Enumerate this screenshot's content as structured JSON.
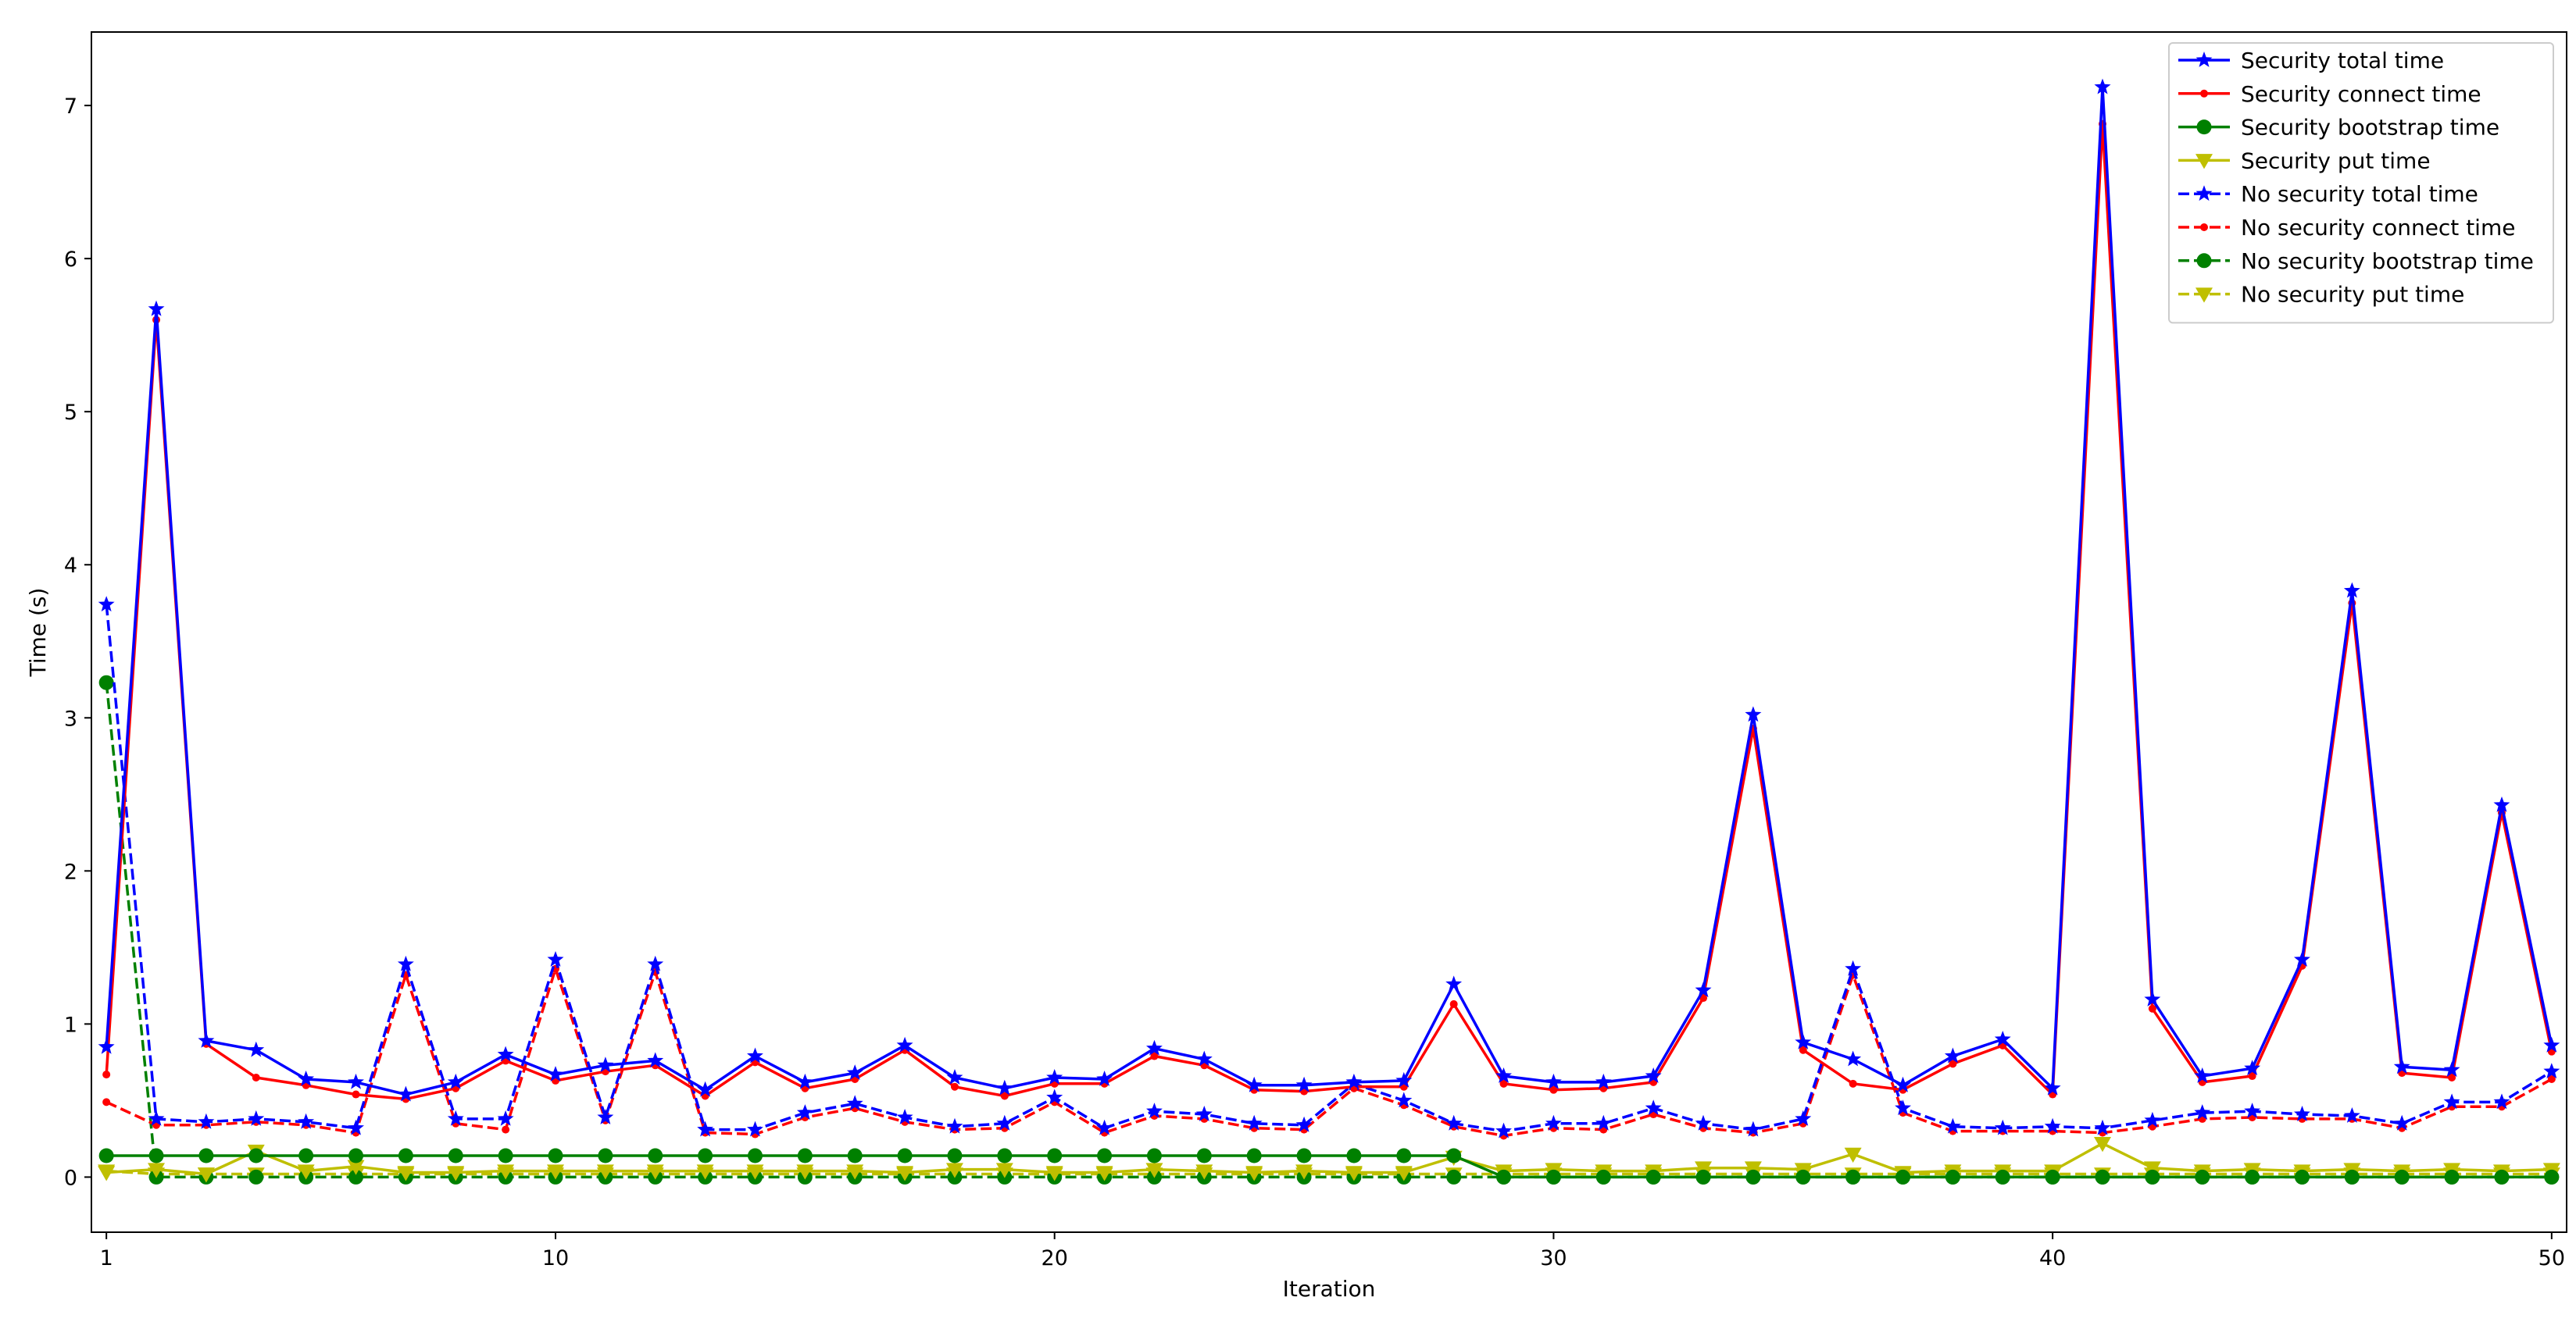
{
  "chart_data": {
    "type": "line",
    "xlabel": "Iteration",
    "ylabel": "Time (s)",
    "xlim": [
      0.7,
      50.3
    ],
    "ylim": [
      -0.36,
      7.48
    ],
    "xticks": [
      1,
      10,
      20,
      30,
      40,
      50
    ],
    "yticks": [
      0,
      1,
      2,
      3,
      4,
      5,
      6,
      7
    ],
    "grid": false,
    "legend_position": "top-right",
    "x": [
      1,
      2,
      3,
      4,
      5,
      6,
      7,
      8,
      9,
      10,
      11,
      12,
      13,
      14,
      15,
      16,
      17,
      18,
      19,
      20,
      21,
      22,
      23,
      24,
      25,
      26,
      27,
      28,
      29,
      30,
      31,
      32,
      33,
      34,
      35,
      36,
      37,
      38,
      39,
      40,
      41,
      42,
      43,
      44,
      45,
      46,
      47,
      48,
      49,
      50
    ],
    "series": [
      {
        "name": "Security total time",
        "color": "#0000ff",
        "linestyle": "solid",
        "marker": "star",
        "values": [
          0.85,
          5.67,
          0.89,
          0.83,
          0.64,
          0.62,
          0.54,
          0.62,
          0.8,
          0.67,
          0.73,
          0.76,
          0.57,
          0.79,
          0.62,
          0.68,
          0.86,
          0.65,
          0.58,
          0.65,
          0.64,
          0.84,
          0.77,
          0.6,
          0.6,
          0.62,
          0.63,
          1.26,
          0.66,
          0.62,
          0.62,
          0.66,
          1.22,
          3.02,
          0.88,
          0.77,
          0.6,
          0.79,
          0.9,
          0.58,
          7.12,
          1.16,
          0.66,
          0.71,
          1.42,
          3.83,
          0.72,
          0.7,
          2.43,
          0.86
        ]
      },
      {
        "name": "Security connect time",
        "color": "#ff0000",
        "linestyle": "solid",
        "marker": "point",
        "values": [
          0.67,
          5.6,
          0.87,
          0.65,
          0.6,
          0.54,
          0.51,
          0.58,
          0.76,
          0.63,
          0.69,
          0.73,
          0.53,
          0.75,
          0.58,
          0.64,
          0.83,
          0.59,
          0.53,
          0.61,
          0.61,
          0.79,
          0.73,
          0.57,
          0.56,
          0.59,
          0.59,
          1.13,
          0.61,
          0.57,
          0.58,
          0.62,
          1.17,
          2.93,
          0.83,
          0.61,
          0.57,
          0.74,
          0.86,
          0.54,
          6.88,
          1.1,
          0.62,
          0.66,
          1.38,
          3.75,
          0.68,
          0.65,
          2.38,
          0.82
        ]
      },
      {
        "name": "Security bootstrap time",
        "color": "#008000",
        "linestyle": "solid",
        "marker": "circle",
        "values": [
          0.14,
          0.14,
          0.14,
          0.14,
          0.14,
          0.14,
          0.14,
          0.14,
          0.14,
          0.14,
          0.14,
          0.14,
          0.14,
          0.14,
          0.14,
          0.14,
          0.14,
          0.14,
          0.14,
          0.14,
          0.14,
          0.14,
          0.14,
          0.14,
          0.14,
          0.14,
          0.14,
          0.14,
          0.0,
          0.0,
          0.0,
          0.0,
          0.0,
          0.0,
          0.0,
          0.0,
          0.0,
          0.0,
          0.0,
          0.0,
          0.0,
          0.0,
          0.0,
          0.0,
          0.0,
          0.0,
          0.0,
          0.0,
          0.0,
          0.0
        ]
      },
      {
        "name": "Security put time",
        "color": "#bfbf00",
        "linestyle": "solid",
        "marker": "triangle-down",
        "values": [
          0.03,
          0.05,
          0.02,
          0.17,
          0.04,
          0.07,
          0.03,
          0.03,
          0.04,
          0.04,
          0.04,
          0.04,
          0.04,
          0.04,
          0.04,
          0.04,
          0.03,
          0.05,
          0.05,
          0.03,
          0.03,
          0.05,
          0.04,
          0.03,
          0.04,
          0.03,
          0.03,
          0.13,
          0.04,
          0.05,
          0.04,
          0.04,
          0.06,
          0.06,
          0.05,
          0.15,
          0.03,
          0.04,
          0.04,
          0.04,
          0.22,
          0.06,
          0.04,
          0.05,
          0.04,
          0.05,
          0.04,
          0.05,
          0.04,
          0.05
        ]
      },
      {
        "name": "No security total time",
        "color": "#0000ff",
        "linestyle": "dashed",
        "marker": "star",
        "values": [
          3.74,
          0.38,
          0.36,
          0.38,
          0.36,
          0.32,
          1.39,
          0.38,
          0.38,
          1.42,
          0.39,
          1.39,
          0.31,
          0.31,
          0.42,
          0.48,
          0.39,
          0.33,
          0.35,
          0.52,
          0.32,
          0.43,
          0.41,
          0.35,
          0.34,
          0.61,
          0.5,
          0.35,
          0.3,
          0.35,
          0.35,
          0.45,
          0.35,
          0.31,
          0.38,
          1.36,
          0.45,
          0.33,
          0.32,
          0.33,
          0.32,
          0.37,
          0.42,
          0.43,
          0.41,
          0.4,
          0.35,
          0.49,
          0.49,
          0.69
        ]
      },
      {
        "name": "No security connect time",
        "color": "#ff0000",
        "linestyle": "dashed",
        "marker": "point",
        "values": [
          0.49,
          0.34,
          0.34,
          0.36,
          0.34,
          0.29,
          1.32,
          0.35,
          0.31,
          1.36,
          0.37,
          1.34,
          0.29,
          0.28,
          0.39,
          0.45,
          0.36,
          0.31,
          0.32,
          0.49,
          0.29,
          0.4,
          0.38,
          0.32,
          0.31,
          0.58,
          0.47,
          0.33,
          0.27,
          0.32,
          0.31,
          0.41,
          0.32,
          0.29,
          0.35,
          1.32,
          0.42,
          0.3,
          0.3,
          0.3,
          0.29,
          0.33,
          0.38,
          0.39,
          0.38,
          0.38,
          0.32,
          0.46,
          0.46,
          0.64
        ]
      },
      {
        "name": "No security bootstrap time",
        "color": "#008000",
        "linestyle": "dashed",
        "marker": "circle",
        "values": [
          3.23,
          0.0,
          0.0,
          0.0,
          0.0,
          0.0,
          0.0,
          0.0,
          0.0,
          0.0,
          0.0,
          0.0,
          0.0,
          0.0,
          0.0,
          0.0,
          0.0,
          0.0,
          0.0,
          0.0,
          0.0,
          0.0,
          0.0,
          0.0,
          0.0,
          0.0,
          0.0,
          0.0,
          0.0,
          0.0,
          0.0,
          0.0,
          0.0,
          0.0,
          0.0,
          0.0,
          0.0,
          0.0,
          0.0,
          0.0,
          0.0,
          0.0,
          0.0,
          0.0,
          0.0,
          0.0,
          0.0,
          0.0,
          0.0,
          0.0
        ]
      },
      {
        "name": "No security put time",
        "color": "#bfbf00",
        "linestyle": "dashed",
        "marker": "triangle-down",
        "values": [
          0.04,
          0.02,
          0.02,
          0.02,
          0.02,
          0.02,
          0.02,
          0.02,
          0.02,
          0.02,
          0.02,
          0.02,
          0.02,
          0.02,
          0.02,
          0.02,
          0.02,
          0.02,
          0.02,
          0.02,
          0.02,
          0.02,
          0.02,
          0.02,
          0.02,
          0.02,
          0.02,
          0.02,
          0.02,
          0.02,
          0.02,
          0.02,
          0.02,
          0.02,
          0.02,
          0.02,
          0.02,
          0.02,
          0.02,
          0.02,
          0.02,
          0.02,
          0.02,
          0.02,
          0.02,
          0.02,
          0.02,
          0.02,
          0.02,
          0.02
        ]
      }
    ]
  }
}
